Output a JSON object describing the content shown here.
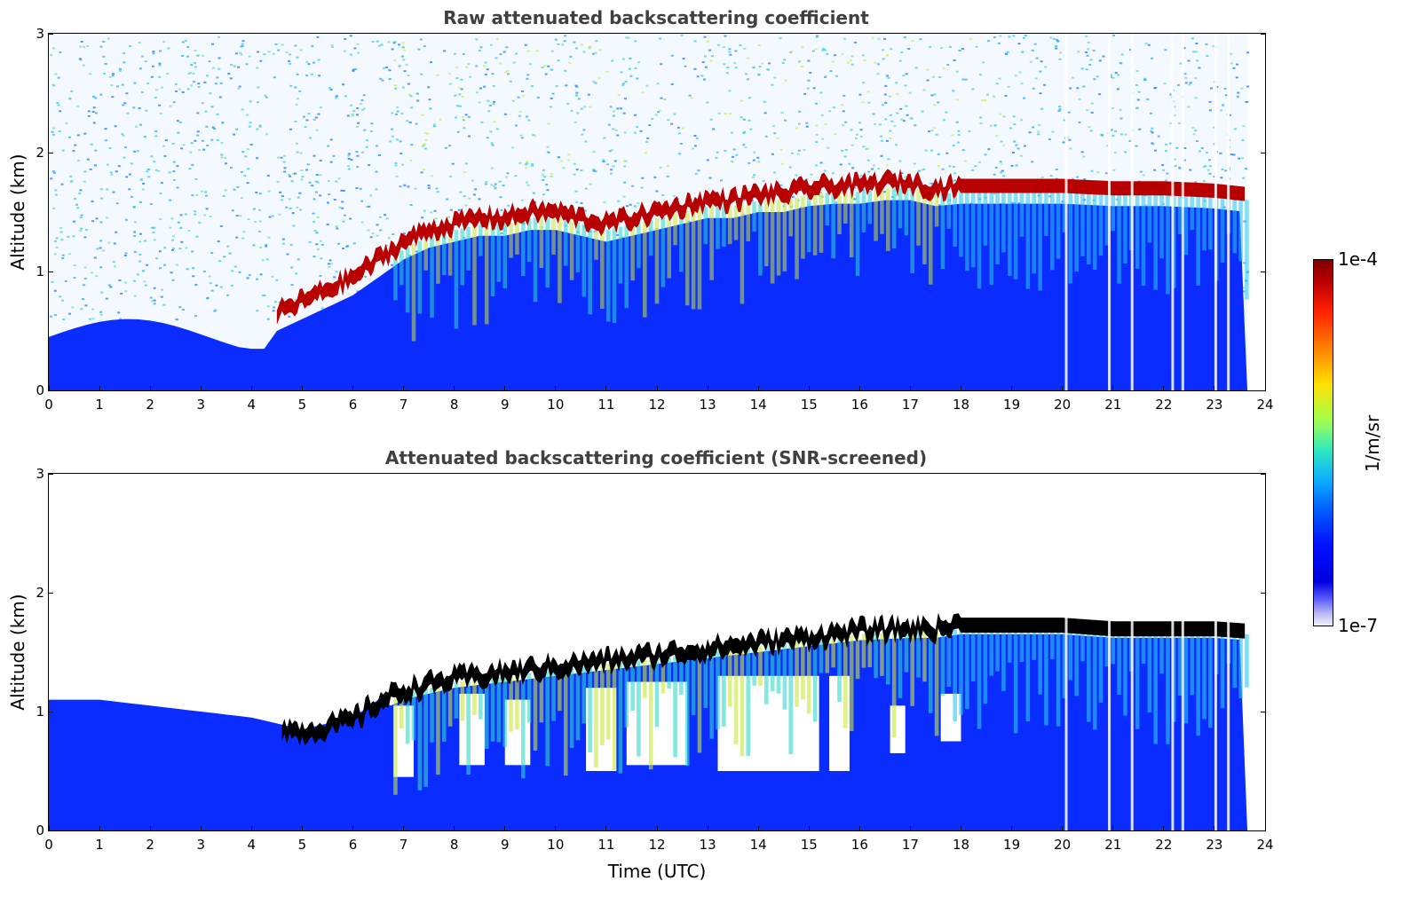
{
  "chart_data": [
    {
      "type": "heatmap",
      "title": "Raw attenuated backscattering coefficient",
      "xlabel": "",
      "ylabel": "Altitude (km)",
      "xlim": [
        0,
        24
      ],
      "ylim": [
        0,
        3
      ],
      "xticks": [
        "0",
        "1",
        "2",
        "3",
        "4",
        "5",
        "6",
        "7",
        "8",
        "9",
        "10",
        "11",
        "12",
        "13",
        "14",
        "15",
        "16",
        "17",
        "18",
        "19",
        "20",
        "21",
        "22",
        "23",
        "24"
      ],
      "yticks": [
        "0",
        "1",
        "2",
        "3"
      ],
      "data_end_time": 23.65,
      "boundary_layer_top_km": {
        "time": [
          4.5,
          5.0,
          5.5,
          6.0,
          6.5,
          7.0,
          7.5,
          8.0,
          8.5,
          9.0,
          9.5,
          10.0,
          10.5,
          11.0,
          11.5,
          12.0,
          12.5,
          13.0,
          13.5,
          14.0,
          14.5,
          15.0,
          15.5,
          16.0,
          16.5,
          17.0,
          17.5,
          18.0,
          19.0,
          20.0,
          21.0,
          22.0,
          23.0,
          23.65
        ],
        "height": [
          0.65,
          0.75,
          0.85,
          0.95,
          1.1,
          1.25,
          1.35,
          1.4,
          1.45,
          1.45,
          1.5,
          1.5,
          1.45,
          1.4,
          1.45,
          1.5,
          1.55,
          1.6,
          1.6,
          1.65,
          1.65,
          1.7,
          1.72,
          1.72,
          1.75,
          1.75,
          1.7,
          1.72,
          1.72,
          1.72,
          1.7,
          1.7,
          1.68,
          1.65
        ]
      },
      "colorscale": "jet (log)",
      "note": "noisy background above 1.5 km; red cloud/aerosol layer at boundary layer top"
    },
    {
      "type": "heatmap",
      "title": "Attenuated backscattering coefficient (SNR-screened)",
      "xlabel": "Time (UTC)",
      "ylabel": "Altitude (km)",
      "xlim": [
        0,
        24
      ],
      "ylim": [
        0,
        3
      ],
      "xticks": [
        "0",
        "1",
        "2",
        "3",
        "4",
        "5",
        "6",
        "7",
        "8",
        "9",
        "10",
        "11",
        "12",
        "13",
        "14",
        "15",
        "16",
        "17",
        "18",
        "19",
        "20",
        "21",
        "22",
        "23",
        "24"
      ],
      "yticks": [
        "0",
        "1",
        "2",
        "3"
      ],
      "data_end_time": 23.65,
      "screened_mask_top_km": {
        "time": [
          0,
          1,
          2,
          3,
          4,
          4.5,
          5,
          6,
          6.5,
          7,
          8,
          9,
          10,
          11,
          12,
          13,
          14,
          15,
          16,
          17,
          17.5,
          18,
          19,
          20,
          21,
          22,
          23,
          23.65
        ],
        "height": [
          1.1,
          1.1,
          1.05,
          1.0,
          0.95,
          0.9,
          0.85,
          0.95,
          1.1,
          1.2,
          1.3,
          1.35,
          1.4,
          1.45,
          1.5,
          1.55,
          1.6,
          1.65,
          1.7,
          1.72,
          1.72,
          1.75,
          1.75,
          1.75,
          1.72,
          1.72,
          1.72,
          1.7
        ]
      },
      "colorscale": "jet (log)",
      "note": "black saturated layer at boundary layer top; white screened gaps below cloud layer"
    }
  ],
  "colorbar": {
    "max_label": "1e-4",
    "min_label": "1e-7",
    "unit_label": "1/m/sr"
  },
  "colors": {
    "background_blue": "#0a2cff",
    "deep_blue": "#0000e6",
    "cyan": "#29d6e6",
    "yellow": "#f0e000",
    "red": "#b80000",
    "dark_red": "#800000",
    "black": "#000000"
  }
}
